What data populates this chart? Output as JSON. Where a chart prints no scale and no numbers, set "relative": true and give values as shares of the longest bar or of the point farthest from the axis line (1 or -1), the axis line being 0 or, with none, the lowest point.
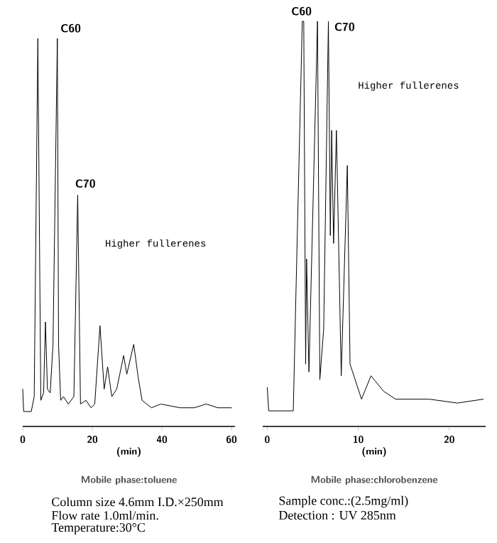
{
  "chart_data": [
    {
      "type": "line",
      "relative": true,
      "xlabel": "(min)",
      "subtitle": "Mobile phase:toluene",
      "xlim": [
        0,
        61
      ],
      "xticks": [
        0,
        20,
        40,
        60
      ],
      "color": "#000000",
      "x": [
        0,
        0.27,
        2.45,
        3.3,
        4.35,
        5.2,
        6.0,
        6.53,
        7.1,
        7.9,
        8.7,
        9.95,
        10.3,
        10.9,
        11.7,
        13.1,
        14.7,
        15.8,
        16.6,
        18.2,
        19.6,
        20.7,
        22.2,
        23.4,
        24.4,
        25.6,
        27.0,
        29.0,
        29.9,
        31.9,
        33.2,
        34.3,
        37.0,
        39.7,
        45.2,
        49.3,
        52.7,
        56.1,
        60
      ],
      "values": [
        0.06,
        0,
        0,
        0.04,
        1.0,
        0.03,
        0.05,
        0.24,
        0.06,
        0.05,
        0.18,
        1.0,
        0.18,
        0.03,
        0.04,
        0.02,
        0.04,
        0.58,
        0.02,
        0.03,
        0.01,
        0.02,
        0.23,
        0.06,
        0.12,
        0.04,
        0.06,
        0.15,
        0.1,
        0.18,
        0.09,
        0.03,
        0.01,
        0.02,
        0.01,
        0.01,
        0.02,
        0.01,
        0.01
      ],
      "annotations": [
        {
          "text": "C60",
          "x": 9.95,
          "y": 1.0
        },
        {
          "text": "C70",
          "x": 15.8,
          "y": 0.58
        },
        "Higher fullerenes",
        "Column size 4.6mm I.D.×250mm",
        "Flow rate 1.0ml/min.",
        "Temperature:30°C"
      ]
    },
    {
      "type": "line",
      "relative": true,
      "xlabel": "(min)",
      "subtitle": "Mobile phase:chlorobenzene",
      "xlim": [
        -0.5,
        24
      ],
      "xticks": [
        0,
        10,
        20
      ],
      "color": "#000000",
      "x": [
        0,
        0.16,
        2.86,
        3.18,
        3.85,
        4.01,
        4.22,
        4.32,
        4.58,
        5.52,
        5.78,
        6.2,
        6.46,
        6.72,
        6.93,
        7.08,
        7.29,
        7.6,
        8.13,
        8.8,
        9.1,
        10.36,
        11.4,
        12.8,
        14.1,
        17.8,
        20.9,
        23.75
      ],
      "values": [
        0.06,
        0,
        0,
        0.33,
        1.0,
        1.0,
        0.12,
        0.39,
        0.1,
        1.0,
        0.08,
        0.21,
        0.6,
        1.0,
        0.45,
        0.72,
        0.43,
        0.72,
        0.09,
        0.63,
        0.12,
        0.03,
        0.09,
        0.05,
        0.03,
        0.03,
        0.02,
        0.03
      ],
      "annotations": [
        {
          "text": "C60",
          "x": 4.01,
          "y": 1.0
        },
        {
          "text": "C70",
          "x": 6.72,
          "y": 1.0
        },
        "Higher fullerenes",
        "Sample conc.:(2.5mg/ml)",
        "Detection : UV 285nm"
      ]
    }
  ]
}
